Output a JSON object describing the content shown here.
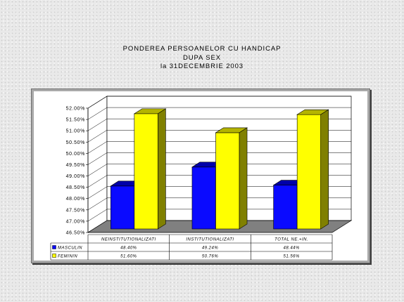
{
  "chart_data": {
    "type": "bar",
    "three_d": true,
    "title": [
      "PONDEREA PERSOANELOR CU HANDICAP",
      "DUPA SEX",
      "la 31DECEMBRIE 2003"
    ],
    "categories": [
      "NEINSTITUTIONALIZATI",
      "INSTITUTIONALIZATI",
      "TOTAL NE.+IN."
    ],
    "series": [
      {
        "name": "MASCULIN",
        "values": [
          48.4,
          49.24,
          48.44
        ],
        "labels": [
          "48.40%",
          "49.24%",
          "48.44%"
        ],
        "color": "#0a0aff",
        "side_color": "#000080",
        "top_color": "#0000a8"
      },
      {
        "name": "FEMININ",
        "values": [
          51.6,
          50.76,
          51.56
        ],
        "labels": [
          "51.60%",
          "50.76%",
          "51.56%"
        ],
        "color": "#ffff00",
        "side_color": "#808000",
        "top_color": "#b4b400"
      }
    ],
    "yticks": [
      "46.50%",
      "47.00%",
      "47.50%",
      "48.00%",
      "48.50%",
      "49.00%",
      "49.50%",
      "50.00%",
      "50.50%",
      "51.00%",
      "51.50%",
      "52.00%"
    ],
    "ylim": [
      46.5,
      52.0
    ],
    "grid": true,
    "legend": "bottom"
  },
  "colors": {
    "floor": "#808080",
    "walls": "#ffffff",
    "page_background": "#e9e9e9",
    "frame_border": "#a9a9a9"
  }
}
